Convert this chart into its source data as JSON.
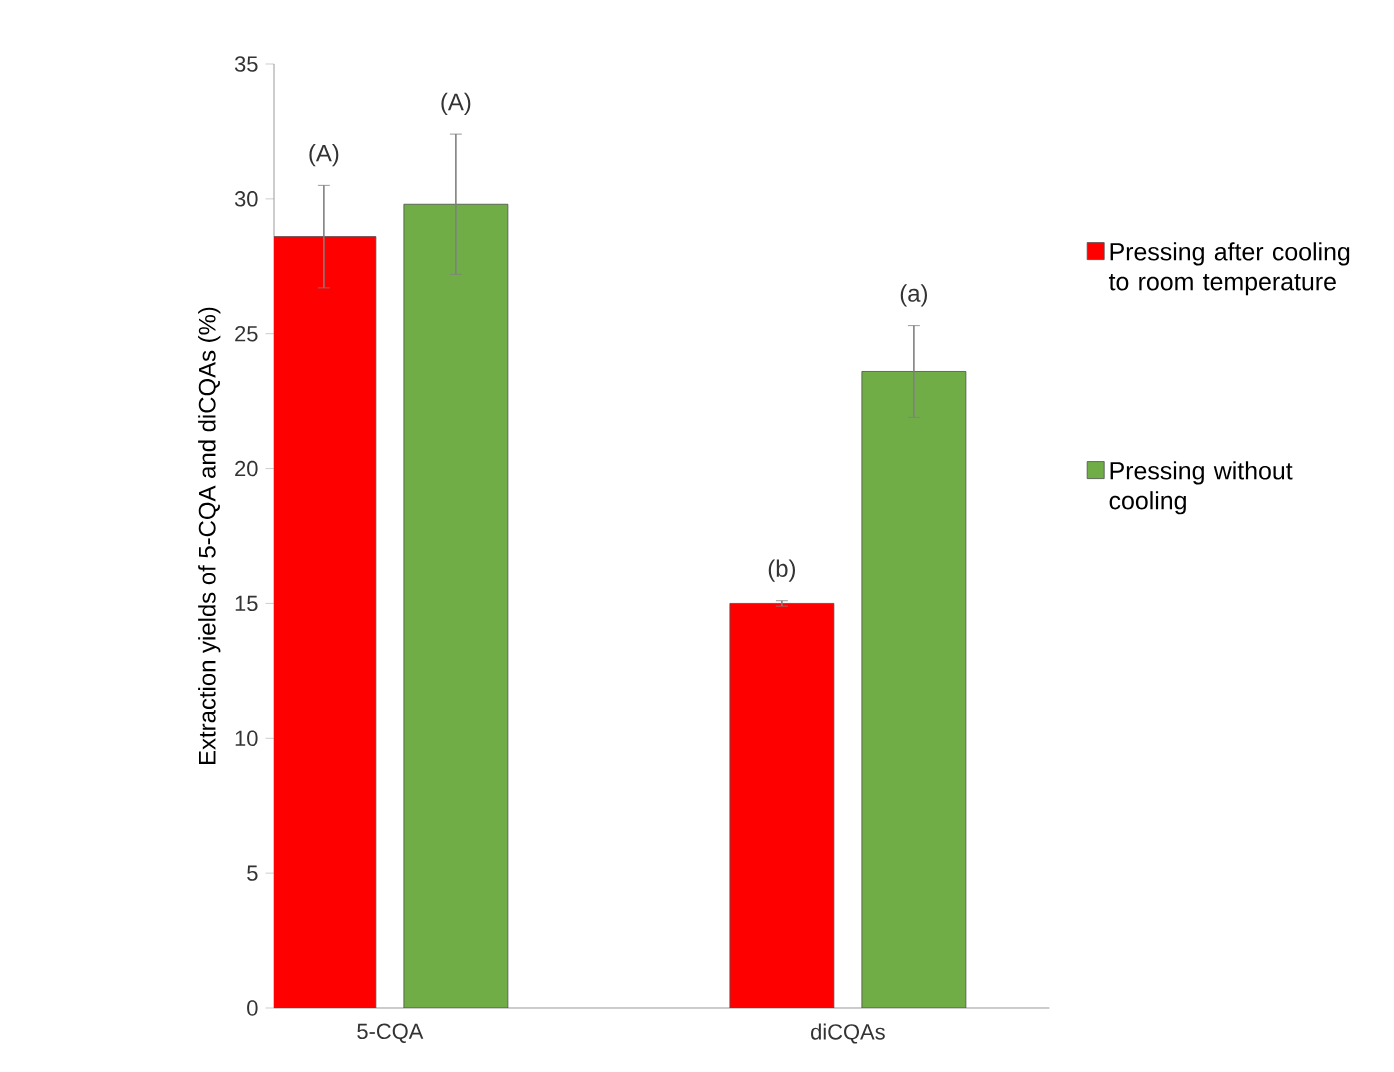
{
  "chart_data": {
    "type": "bar",
    "ylabel": "Extraction yields of 5-CQA and diCQAs (%)",
    "categories": [
      "5-CQA",
      "diCQAs"
    ],
    "series": [
      {
        "name": "Pressing after cooling to room temperature",
        "color": "#ff0000",
        "values": [
          28.6,
          15.0
        ],
        "errors": [
          1.9,
          0.1
        ]
      },
      {
        "name": "Pressing without cooling",
        "color": "#70ad47",
        "values": [
          29.8,
          23.6
        ],
        "errors": [
          2.6,
          1.7
        ]
      }
    ],
    "ylim": [
      0,
      35
    ],
    "yticks": [
      0,
      5,
      10,
      15,
      20,
      25,
      30,
      35
    ],
    "annotations": [
      "(A)",
      "(A)",
      "(b)",
      "(a)"
    ],
    "legend": "right",
    "grid": false
  }
}
